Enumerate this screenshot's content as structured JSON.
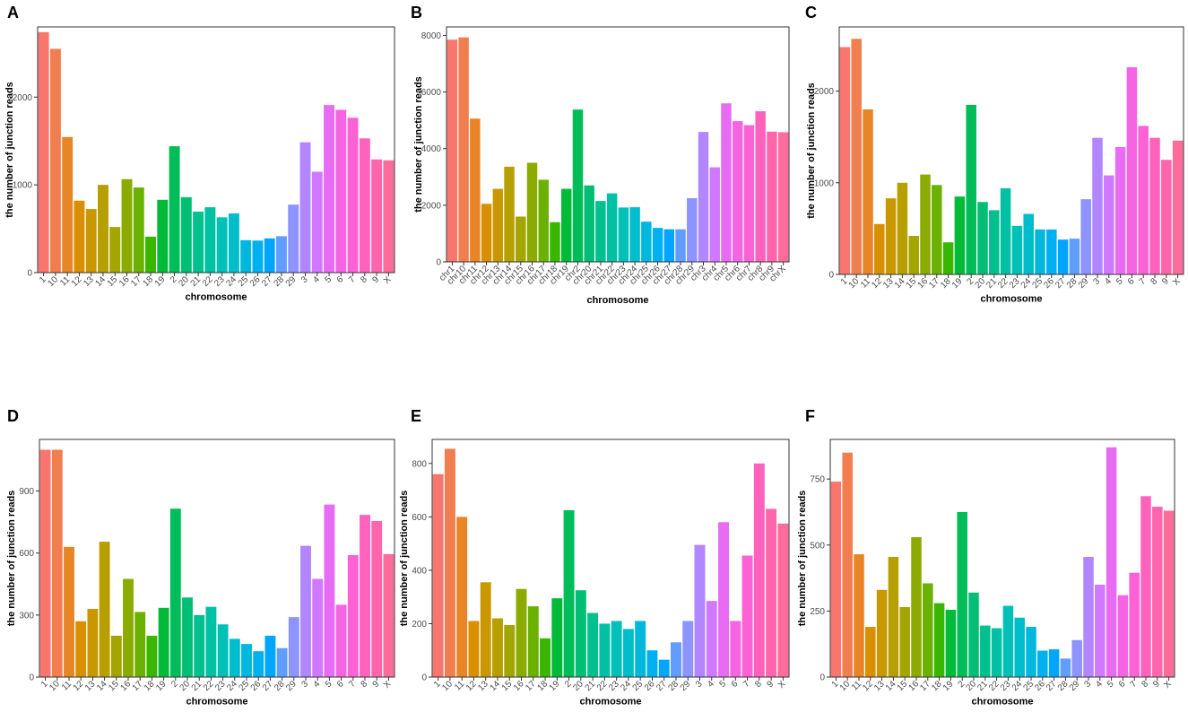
{
  "figure": {
    "panels": [
      "A",
      "B",
      "C",
      "D",
      "E",
      "F"
    ]
  },
  "chart_data": [
    {
      "panel_label": "A",
      "type": "bar",
      "xlabel": "chromosome",
      "ylabel": "the number of junction reads",
      "ylim": [
        0,
        2800
      ],
      "yticks": [
        0,
        1000,
        2000
      ],
      "categories": [
        "1",
        "10",
        "11",
        "12",
        "13",
        "14",
        "15",
        "16",
        "17",
        "18",
        "19",
        "2",
        "20",
        "21",
        "22",
        "23",
        "24",
        "25",
        "26",
        "27",
        "28",
        "29",
        "3",
        "4",
        "5",
        "6",
        "7",
        "8",
        "9",
        "X"
      ],
      "values": [
        2740,
        2550,
        1545,
        820,
        725,
        1000,
        520,
        1065,
        970,
        410,
        830,
        1440,
        860,
        695,
        745,
        630,
        675,
        370,
        365,
        390,
        415,
        775,
        1485,
        1150,
        1910,
        1855,
        1765,
        1530,
        1290,
        1280
      ],
      "colors": [
        "#F8766D",
        "#F17E4E",
        "#E88526",
        "#D89000",
        "#C99800",
        "#B79F00",
        "#A3A500",
        "#8BAB00",
        "#6BB100",
        "#39B600",
        "#00BA38",
        "#00BC59",
        "#00BF75",
        "#00C08D",
        "#00C1A3",
        "#00C0B8",
        "#00BDCC",
        "#00B7DE",
        "#00B0F0",
        "#00A5FF",
        "#619CFF",
        "#8D93FF",
        "#B186FF",
        "#D078FF",
        "#E76BF3",
        "#F564E3",
        "#FC61D5",
        "#FF62BC",
        "#FF65AC",
        "#FD6C9B"
      ]
    },
    {
      "panel_label": "B",
      "type": "bar",
      "xlabel": "chromosome",
      "ylabel": "the number of junction reads",
      "ylim": [
        0,
        8300
      ],
      "yticks": [
        0,
        2000,
        4000,
        6000,
        8000
      ],
      "categories": [
        "chr1",
        "chr10",
        "chr11",
        "chr12",
        "chr13",
        "chr14",
        "chr15",
        "chr16",
        "chr17",
        "chr18",
        "chr19",
        "chr2",
        "chr20",
        "chr21",
        "chr22",
        "chr23",
        "chr24",
        "chr25",
        "chr26",
        "chr27",
        "chr28",
        "chr29",
        "chr3",
        "chr4",
        "chr5",
        "chr6",
        "chr7",
        "chr8",
        "chr9",
        "chrX"
      ],
      "values": [
        7850,
        7930,
        5060,
        2050,
        2580,
        3360,
        1600,
        3500,
        2900,
        1400,
        2580,
        5380,
        2700,
        2150,
        2420,
        1920,
        1930,
        1420,
        1200,
        1150,
        1150,
        2250,
        4590,
        3340,
        5600,
        4970,
        4830,
        5320,
        4600,
        4580
      ],
      "colors": [
        "#F8766D",
        "#F17E4E",
        "#E88526",
        "#D89000",
        "#C99800",
        "#B79F00",
        "#A3A500",
        "#8BAB00",
        "#6BB100",
        "#39B600",
        "#00BA38",
        "#00BC59",
        "#00BF75",
        "#00C08D",
        "#00C1A3",
        "#00C0B8",
        "#00BDCC",
        "#00B7DE",
        "#00B0F0",
        "#00A5FF",
        "#619CFF",
        "#8D93FF",
        "#B186FF",
        "#D078FF",
        "#E76BF3",
        "#F564E3",
        "#FC61D5",
        "#FF62BC",
        "#FF65AC",
        "#FD6C9B"
      ]
    },
    {
      "panel_label": "C",
      "type": "bar",
      "xlabel": "chromosome",
      "ylabel": "the number of junction reads",
      "ylim": [
        0,
        2700
      ],
      "yticks": [
        0,
        1000,
        2000
      ],
      "categories": [
        "1",
        "10",
        "11",
        "12",
        "13",
        "14",
        "15",
        "16",
        "17",
        "18",
        "19",
        "2",
        "20",
        "21",
        "22",
        "23",
        "24",
        "25",
        "26",
        "27",
        "28",
        "29",
        "3",
        "4",
        "5",
        "6",
        "7",
        "8",
        "9",
        "X"
      ],
      "values": [
        2480,
        2570,
        1800,
        550,
        830,
        1000,
        420,
        1090,
        975,
        350,
        850,
        1850,
        790,
        700,
        940,
        530,
        660,
        490,
        490,
        380,
        390,
        820,
        1490,
        1080,
        1390,
        2260,
        1620,
        1490,
        1250,
        1460
      ],
      "colors": [
        "#F8766D",
        "#F17E4E",
        "#E88526",
        "#D89000",
        "#C99800",
        "#B79F00",
        "#A3A500",
        "#8BAB00",
        "#6BB100",
        "#39B600",
        "#00BA38",
        "#00BC59",
        "#00BF75",
        "#00C08D",
        "#00C1A3",
        "#00C0B8",
        "#00BDCC",
        "#00B7DE",
        "#00B0F0",
        "#00A5FF",
        "#619CFF",
        "#8D93FF",
        "#B186FF",
        "#D078FF",
        "#E76BF3",
        "#F564E3",
        "#FC61D5",
        "#FF62BC",
        "#FF65AC",
        "#FD6C9B"
      ]
    },
    {
      "panel_label": "D",
      "type": "bar",
      "xlabel": "chromosome",
      "ylabel": "the number of junction reads",
      "ylim": [
        0,
        1150
      ],
      "yticks": [
        0,
        300,
        600,
        900
      ],
      "categories": [
        "1",
        "10",
        "11",
        "12",
        "13",
        "14",
        "15",
        "16",
        "17",
        "18",
        "19",
        "2",
        "20",
        "21",
        "22",
        "23",
        "24",
        "25",
        "26",
        "27",
        "28",
        "29",
        "3",
        "4",
        "5",
        "6",
        "7",
        "8",
        "9",
        "X"
      ],
      "values": [
        1100,
        1100,
        630,
        270,
        330,
        655,
        200,
        475,
        315,
        200,
        335,
        815,
        385,
        300,
        340,
        255,
        185,
        160,
        125,
        200,
        140,
        290,
        635,
        475,
        835,
        350,
        590,
        785,
        755,
        595
      ],
      "colors": [
        "#F8766D",
        "#F17E4E",
        "#E88526",
        "#D89000",
        "#C99800",
        "#B79F00",
        "#A3A500",
        "#8BAB00",
        "#6BB100",
        "#39B600",
        "#00BA38",
        "#00BC59",
        "#00BF75",
        "#00C08D",
        "#00C1A3",
        "#00C0B8",
        "#00BDCC",
        "#00B7DE",
        "#00B0F0",
        "#00A5FF",
        "#619CFF",
        "#8D93FF",
        "#B186FF",
        "#D078FF",
        "#E76BF3",
        "#F564E3",
        "#FC61D5",
        "#FF62BC",
        "#FF65AC",
        "#FD6C9B"
      ]
    },
    {
      "panel_label": "E",
      "type": "bar",
      "xlabel": "chromosome",
      "ylabel": "the number of junction reads",
      "ylim": [
        0,
        890
      ],
      "yticks": [
        0,
        200,
        400,
        600,
        800
      ],
      "categories": [
        "1",
        "10",
        "11",
        "12",
        "13",
        "14",
        "15",
        "16",
        "17",
        "18",
        "19",
        "2",
        "20",
        "21",
        "22",
        "23",
        "24",
        "25",
        "26",
        "27",
        "28",
        "29",
        "3",
        "4",
        "5",
        "6",
        "7",
        "8",
        "9",
        "X"
      ],
      "values": [
        760,
        855,
        600,
        210,
        355,
        220,
        195,
        330,
        265,
        145,
        295,
        625,
        325,
        240,
        200,
        210,
        180,
        210,
        100,
        65,
        130,
        210,
        495,
        285,
        580,
        210,
        455,
        800,
        630,
        575
      ],
      "colors": [
        "#F8766D",
        "#F17E4E",
        "#E88526",
        "#D89000",
        "#C99800",
        "#B79F00",
        "#A3A500",
        "#8BAB00",
        "#6BB100",
        "#39B600",
        "#00BA38",
        "#00BC59",
        "#00BF75",
        "#00C08D",
        "#00C1A3",
        "#00C0B8",
        "#00BDCC",
        "#00B7DE",
        "#00B0F0",
        "#00A5FF",
        "#619CFF",
        "#8D93FF",
        "#B186FF",
        "#D078FF",
        "#E76BF3",
        "#F564E3",
        "#FC61D5",
        "#FF62BC",
        "#FF65AC",
        "#FD6C9B"
      ]
    },
    {
      "panel_label": "F",
      "type": "bar",
      "xlabel": "chromosome",
      "ylabel": "the number of junction reads",
      "ylim": [
        0,
        900
      ],
      "yticks": [
        0,
        250,
        500,
        750
      ],
      "categories": [
        "1",
        "10",
        "11",
        "12",
        "13",
        "14",
        "15",
        "16",
        "17",
        "18",
        "19",
        "2",
        "20",
        "21",
        "22",
        "23",
        "24",
        "25",
        "26",
        "27",
        "28",
        "29",
        "3",
        "4",
        "5",
        "6",
        "7",
        "8",
        "9",
        "X"
      ],
      "values": [
        740,
        850,
        465,
        190,
        330,
        455,
        265,
        530,
        355,
        280,
        255,
        625,
        320,
        195,
        185,
        270,
        225,
        190,
        100,
        105,
        70,
        140,
        455,
        350,
        870,
        310,
        395,
        685,
        645,
        630
      ],
      "colors": [
        "#F8766D",
        "#F17E4E",
        "#E88526",
        "#D89000",
        "#C99800",
        "#B79F00",
        "#A3A500",
        "#8BAB00",
        "#6BB100",
        "#39B600",
        "#00BA38",
        "#00BC59",
        "#00BF75",
        "#00C08D",
        "#00C1A3",
        "#00C0B8",
        "#00BDCC",
        "#00B7DE",
        "#00B0F0",
        "#00A5FF",
        "#619CFF",
        "#8D93FF",
        "#B186FF",
        "#D078FF",
        "#E76BF3",
        "#F564E3",
        "#FC61D5",
        "#FF62BC",
        "#FF65AC",
        "#FD6C9B"
      ]
    }
  ]
}
